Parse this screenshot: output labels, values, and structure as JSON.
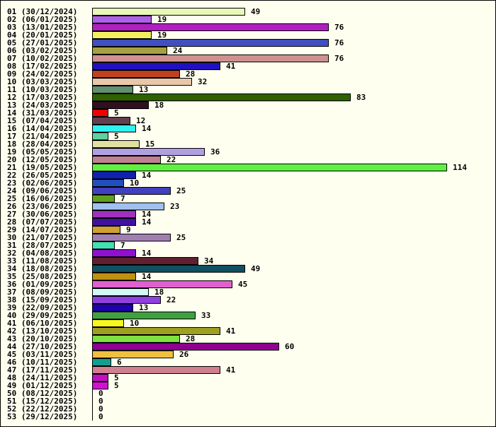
{
  "chart_data": {
    "type": "bar",
    "orientation": "horizontal",
    "title": "",
    "xlabel": "",
    "ylabel": "",
    "grid": false,
    "xlim": [
      0,
      114
    ],
    "categories": [
      "01 (30/12/2024)",
      "02 (06/01/2025)",
      "03 (13/01/2025)",
      "04 (20/01/2025)",
      "05 (27/01/2025)",
      "06 (03/02/2025)",
      "07 (10/02/2025)",
      "08 (17/02/2025)",
      "09 (24/02/2025)",
      "10 (03/03/2025)",
      "11 (10/03/2025)",
      "12 (17/03/2025)",
      "13 (24/03/2025)",
      "14 (31/03/2025)",
      "15 (07/04/2025)",
      "16 (14/04/2025)",
      "17 (21/04/2025)",
      "18 (28/04/2025)",
      "19 (05/05/2025)",
      "20 (12/05/2025)",
      "21 (19/05/2025)",
      "22 (26/05/2025)",
      "23 (02/06/2025)",
      "24 (09/06/2025)",
      "25 (16/06/2025)",
      "26 (23/06/2025)",
      "27 (30/06/2025)",
      "28 (07/07/2025)",
      "29 (14/07/2025)",
      "30 (21/07/2025)",
      "31 (28/07/2025)",
      "32 (04/08/2025)",
      "33 (11/08/2025)",
      "34 (18/08/2025)",
      "35 (25/08/2025)",
      "36 (01/09/2025)",
      "37 (08/09/2025)",
      "38 (15/09/2025)",
      "39 (22/09/2025)",
      "40 (29/09/2025)",
      "41 (06/10/2025)",
      "42 (13/10/2025)",
      "43 (20/10/2025)",
      "44 (27/10/2025)",
      "45 (03/11/2025)",
      "46 (10/11/2025)",
      "47 (17/11/2025)",
      "48 (24/11/2025)",
      "49 (01/12/2025)",
      "50 (08/12/2025)",
      "51 (15/12/2025)",
      "52 (22/12/2025)",
      "53 (29/12/2025)"
    ],
    "values": [
      49,
      19,
      76,
      19,
      76,
      24,
      76,
      41,
      28,
      32,
      13,
      83,
      18,
      5,
      12,
      14,
      5,
      15,
      36,
      22,
      114,
      14,
      10,
      25,
      7,
      23,
      14,
      14,
      9,
      25,
      7,
      14,
      34,
      49,
      14,
      45,
      18,
      22,
      13,
      33,
      10,
      41,
      28,
      60,
      26,
      6,
      41,
      5,
      5,
      0,
      0,
      0,
      0
    ],
    "colors": [
      "#e8f8b8",
      "#b060e8",
      "#b020c0",
      "#f0f060",
      "#4050c0",
      "#a8a040",
      "#d09090",
      "#2010c0",
      "#c04020",
      "#e8c8a8",
      "#609070",
      "#306000",
      "#301020",
      "#f00000",
      "#604050",
      "#30f0f0",
      "#60d0a0",
      "#e0e0a0",
      "#b0a0e0",
      "#c08090",
      "#60f040",
      "#1020b0",
      "#2050c0",
      "#4040c0",
      "#60a020",
      "#a0c0f0",
      "#a030c0",
      "#4010a0",
      "#d0a030",
      "#a080b0",
      "#40e0b0",
      "#9010d0",
      "#602030",
      "#105060",
      "#c09010",
      "#e060d0",
      "#d0f8f8",
      "#9040e0",
      "#2000b0",
      "#40a040",
      "#f8f820",
      "#a0a020",
      "#80e040",
      "#900090",
      "#f0c040",
      "#10a090",
      "#d08090",
      "#c010c0",
      "#d010d0",
      "#ffffff",
      "#ffffff",
      "#ffffff",
      "#ffffff"
    ]
  }
}
